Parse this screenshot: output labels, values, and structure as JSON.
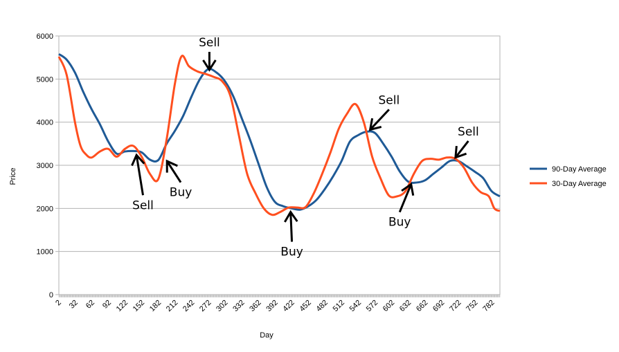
{
  "chart_data": {
    "type": "line",
    "title": "",
    "xlabel": "Day",
    "ylabel": "Price",
    "xlim": [
      1,
      795
    ],
    "ylim": [
      0,
      6000
    ],
    "grid": true,
    "legend_position": "right",
    "y_ticks": [
      "0",
      "1000",
      "2000",
      "3000",
      "4000",
      "5000",
      "6000"
    ],
    "y_tick_values": [
      0,
      1000,
      2000,
      3000,
      4000,
      5000,
      6000
    ],
    "x_ticks": [
      "2",
      "32",
      "62",
      "92",
      "122",
      "152",
      "182",
      "212",
      "242",
      "272",
      "302",
      "332",
      "362",
      "392",
      "422",
      "452",
      "482",
      "512",
      "542",
      "572",
      "602",
      "632",
      "662",
      "692",
      "722",
      "752",
      "782"
    ],
    "series": [
      {
        "name": "90-Day Average",
        "color": "#1f5a96",
        "x": [
          1,
          15,
          30,
          45,
          60,
          75,
          90,
          105,
          120,
          135,
          150,
          165,
          180,
          195,
          210,
          225,
          240,
          255,
          270,
          285,
          300,
          315,
          330,
          345,
          360,
          375,
          390,
          405,
          420,
          435,
          450,
          465,
          480,
          495,
          510,
          525,
          540,
          555,
          570,
          585,
          600,
          615,
          630,
          645,
          660,
          675,
          690,
          705,
          720,
          735,
          750,
          765,
          780,
          795
        ],
        "y": [
          5580,
          5450,
          5150,
          4700,
          4300,
          3950,
          3550,
          3270,
          3320,
          3330,
          3300,
          3130,
          3120,
          3500,
          3800,
          4150,
          4600,
          5000,
          5230,
          5150,
          4950,
          4600,
          4100,
          3600,
          3050,
          2500,
          2150,
          2050,
          2000,
          1970,
          2050,
          2200,
          2450,
          2750,
          3100,
          3550,
          3700,
          3780,
          3750,
          3500,
          3200,
          2850,
          2620,
          2600,
          2650,
          2800,
          2950,
          3100,
          3100,
          2980,
          2850,
          2700,
          2400,
          2280
        ]
      },
      {
        "name": "30-Day Average",
        "color": "#ff4f1f",
        "x": [
          1,
          15,
          30,
          40,
          50,
          60,
          75,
          90,
          105,
          120,
          135,
          150,
          165,
          180,
          195,
          210,
          222,
          235,
          250,
          265,
          280,
          295,
          310,
          325,
          340,
          355,
          370,
          385,
          400,
          415,
          430,
          445,
          460,
          475,
          490,
          505,
          520,
          535,
          550,
          565,
          580,
          595,
          610,
          625,
          640,
          655,
          670,
          685,
          700,
          715,
          730,
          745,
          760,
          775,
          785,
          795
        ],
        "y": [
          5520,
          5100,
          4000,
          3450,
          3250,
          3180,
          3320,
          3380,
          3200,
          3380,
          3450,
          3200,
          2800,
          2680,
          3600,
          4900,
          5530,
          5300,
          5180,
          5120,
          5050,
          4950,
          4600,
          3700,
          2800,
          2350,
          2000,
          1850,
          1920,
          2020,
          2020,
          2030,
          2350,
          2800,
          3300,
          3850,
          4200,
          4420,
          4000,
          3200,
          2700,
          2300,
          2280,
          2400,
          2800,
          3100,
          3150,
          3130,
          3180,
          3150,
          2950,
          2600,
          2380,
          2280,
          2000,
          1940
        ]
      }
    ],
    "annotations": [
      {
        "text": "Sell",
        "day": 272,
        "value": 5150
      },
      {
        "text": "Sell",
        "day": 140,
        "value": 3300
      },
      {
        "text": "Buy",
        "day": 193,
        "value": 3150
      },
      {
        "text": "Buy",
        "day": 418,
        "value": 1980
      },
      {
        "text": "Sell",
        "day": 558,
        "value": 3780
      },
      {
        "text": "Buy",
        "day": 637,
        "value": 2620
      },
      {
        "text": "Sell",
        "day": 712,
        "value": 3130
      }
    ]
  }
}
